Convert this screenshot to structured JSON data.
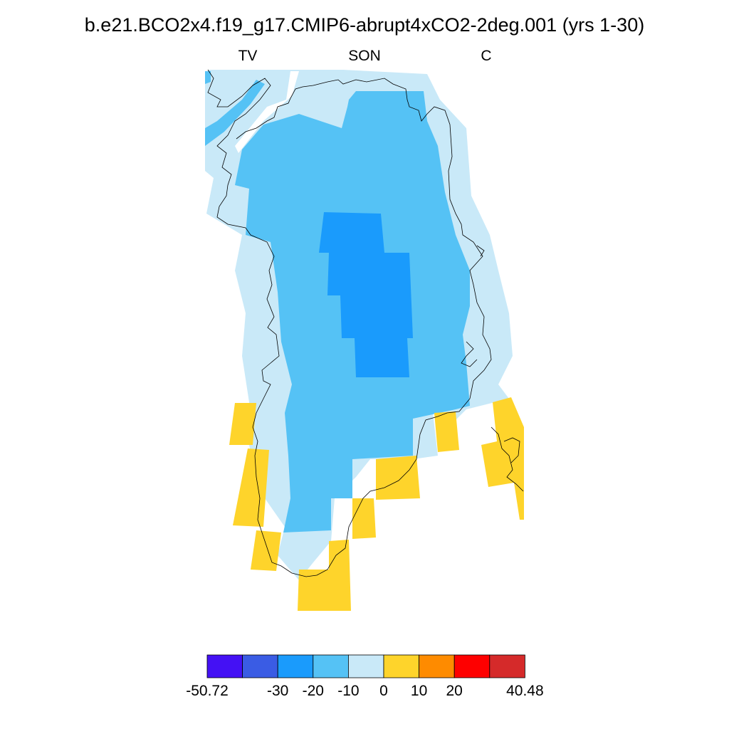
{
  "title": "b.e21.BCO2x4.f19_g17.CMIP6-abrupt4xCO2-2deg.001 (yrs 1-30)",
  "subtitle_left": "TV",
  "subtitle_center": "SON",
  "subtitle_right": "C",
  "colors": {
    "bin_-50_-30": "#4411f4",
    "bin_-40_-30": "#3a5ce4",
    "bin_-30_-20": "#1a9bfc",
    "bin_-20_-10": "#55c2f5",
    "bin_-10_0": "#c9e9f8",
    "bin_0_10": "#fed42b",
    "bin_10_20": "#fe8b00",
    "bin_20_30": "#fe0000",
    "bin_30_40": "#d52a2a",
    "coastline": "#000000"
  },
  "colorbar": {
    "colors": [
      "#4411f4",
      "#3a5ce4",
      "#1a9bfc",
      "#55c2f5",
      "#c9e9f8",
      "#fed42b",
      "#fe8b00",
      "#fe0000",
      "#d52a2a"
    ],
    "labels": [
      {
        "text": "-50.72",
        "boundary": 0
      },
      {
        "text": "-30",
        "boundary": 2
      },
      {
        "text": "-20",
        "boundary": 3
      },
      {
        "text": "-10",
        "boundary": 4
      },
      {
        "text": "0",
        "boundary": 5
      },
      {
        "text": "10",
        "boundary": 6
      },
      {
        "text": "20",
        "boundary": 7
      },
      {
        "text": "40.48",
        "boundary": 9
      }
    ]
  }
}
